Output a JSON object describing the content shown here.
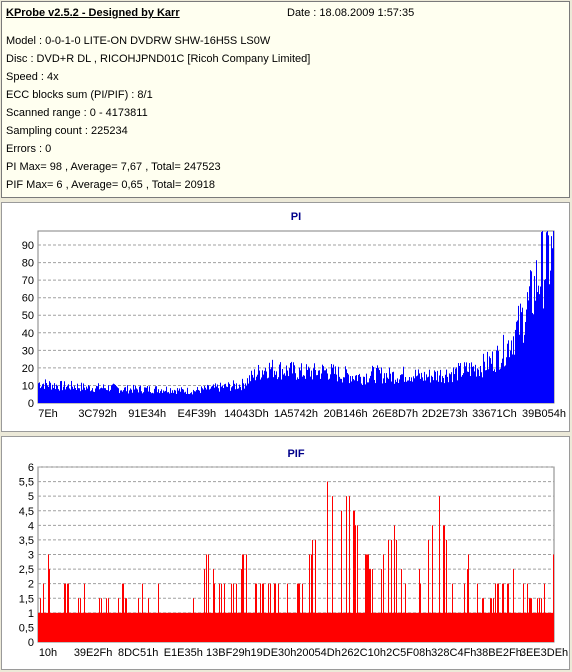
{
  "header": {
    "title": "KProbe v2.5.2 - Designed by Karr",
    "date": "Date : 18.08.2009 1:57:35"
  },
  "info": {
    "model": "Model : 0-0-1-0 LITE-ON DVDRW SHW-16H5S  LS0W",
    "disc": "Disc : DVD+R DL , RICOHJPND01C [Ricoh Company Limited]",
    "speed": "Speed : 4x",
    "ecc": "ECC blocks sum (PI/PIF) : 8/1",
    "range": "Scanned range : 0 - 4173811",
    "sampling": "Sampling count : 225234",
    "errors": "Errors : 0",
    "pi_stats": "PI Max= 98 , Average= 7,67 , Total= 247523",
    "pif_stats": "PIF Max= 6 , Average= 0,65 , Total= 20918"
  },
  "colors": {
    "pi": "#0000ff",
    "pif": "#ff0000",
    "title": "#00008b"
  },
  "chart_data": [
    {
      "type": "bar",
      "title": "PI",
      "ylim": [
        0,
        98
      ],
      "yticks": [
        "0",
        "10",
        "20",
        "30",
        "40",
        "50",
        "60",
        "70",
        "80",
        "90"
      ],
      "ytick_values": [
        0,
        10,
        20,
        30,
        40,
        50,
        60,
        70,
        80,
        90
      ],
      "xticks": [
        "7Eh",
        "3C792h",
        "91E34h",
        "E4F39h",
        "14043Dh",
        "1A5742h",
        "20B146h",
        "26E8D7h",
        "2D2E73h",
        "33671Ch",
        "39B054h"
      ],
      "grid": true,
      "series": [
        {
          "values": [
            13,
            12,
            11,
            11,
            10,
            10,
            10,
            9,
            9,
            9,
            9,
            9,
            8,
            8,
            9,
            10,
            11,
            12,
            18,
            23,
            22,
            21,
            20,
            20,
            21,
            19,
            18,
            17,
            19,
            18,
            18,
            19,
            17,
            18,
            19,
            20,
            22,
            24,
            28,
            35,
            48,
            65,
            88,
            98
          ]
        }
      ]
    },
    {
      "type": "bar",
      "title": "PIF",
      "ylim": [
        0,
        6
      ],
      "yticks": [
        "0",
        "0,5",
        "1",
        "1,5",
        "2",
        "2,5",
        "3",
        "3,5",
        "4",
        "4,5",
        "5",
        "5,5",
        "6"
      ],
      "ytick_values": [
        0,
        0.5,
        1,
        1.5,
        2,
        2.5,
        3,
        3.5,
        4,
        4.5,
        5,
        5.5,
        6
      ],
      "xticks": [
        "10h",
        "39E2Fh",
        "8DC51h",
        "E1E35h",
        "13BF29h",
        "19DE30h",
        "20054Dh",
        "262C10h",
        "2C5F08h",
        "328C4Fh",
        "38BE2Fh",
        "3EE3DEh"
      ],
      "grid": true,
      "series": [
        {
          "values": [
            1,
            3,
            1,
            2,
            1,
            2,
            1,
            2,
            1,
            2,
            1,
            2,
            1,
            2,
            1,
            2,
            2,
            1,
            3,
            2,
            2,
            2,
            3,
            2,
            2,
            2,
            2,
            2,
            2,
            3,
            4,
            6,
            4,
            5,
            4,
            3,
            2,
            3,
            4,
            2,
            3,
            2,
            4,
            5,
            2,
            1,
            3,
            2,
            1,
            2,
            2,
            3,
            2,
            1,
            2,
            3
          ]
        }
      ]
    }
  ]
}
